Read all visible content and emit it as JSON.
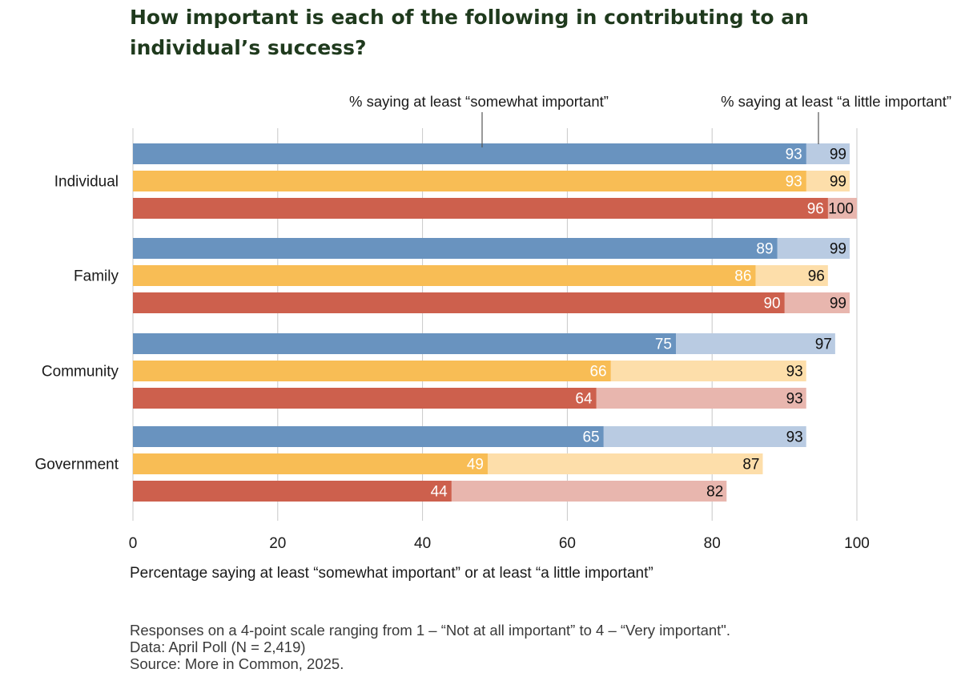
{
  "chart_data": {
    "type": "bar",
    "orientation": "horizontal",
    "title": "How important is each of the following in contributing to an individual’s success?",
    "categories": [
      "Individual",
      "Family",
      "Community",
      "Government"
    ],
    "series": [
      {
        "name": "blue group",
        "color_dark": "#6993bf",
        "color_light": "#b9cbe2",
        "somewhat": [
          93,
          89,
          75,
          65
        ],
        "little": [
          99,
          99,
          97,
          93
        ]
      },
      {
        "name": "yellow group",
        "color_dark": "#f8bd55",
        "color_light": "#fddeaa",
        "somewhat": [
          93,
          86,
          66,
          49
        ],
        "little": [
          99,
          96,
          93,
          87
        ]
      },
      {
        "name": "red group",
        "color_dark": "#cd604d",
        "color_light": "#e8b6ae",
        "somewhat": [
          96,
          90,
          64,
          44
        ],
        "little": [
          100,
          99,
          93,
          82
        ]
      }
    ],
    "annotation_somewhat": "% saying at least “somewhat important”",
    "annotation_little": "% saying at least “a little important”",
    "xlabel": "Percentage saying at least “somewhat important” or at least “a little important”",
    "xticks": [
      0,
      20,
      40,
      60,
      80,
      100
    ],
    "xlim": [
      0,
      100
    ],
    "grid": true
  },
  "notes": {
    "line1": "Responses on a 4-point scale ranging from 1 – “Not at all important” to 4 – “Very important\".",
    "line2": "Data: April Poll (N = 2,419)",
    "line3": "Source: More in Common, 2025."
  }
}
